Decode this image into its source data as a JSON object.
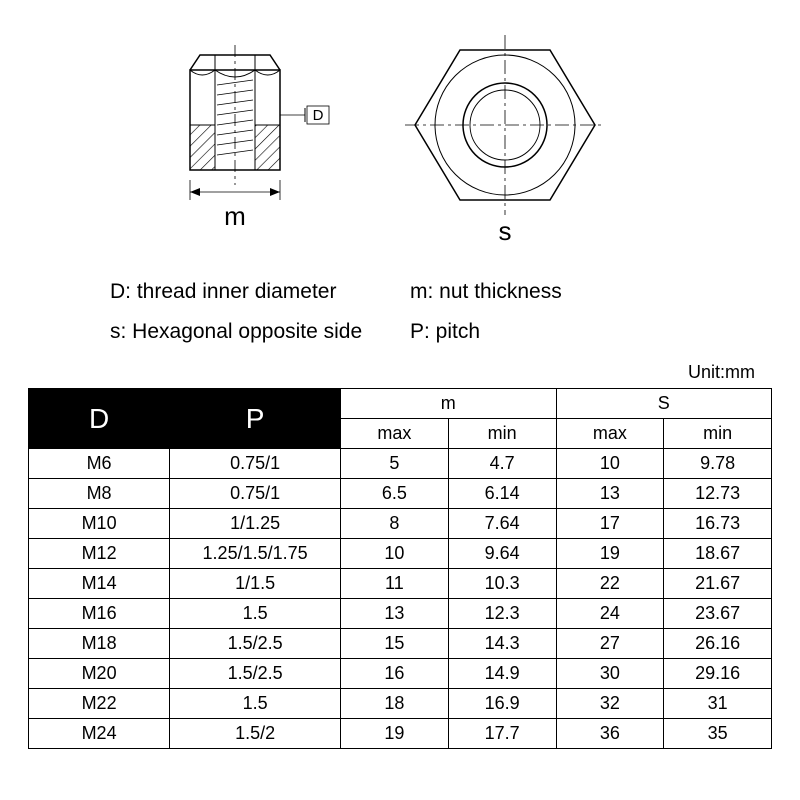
{
  "diagrams": {
    "side_label": "m",
    "top_label": "s",
    "d_callout": "D",
    "stroke": "#000000",
    "hatch": "#000000"
  },
  "legend": {
    "d": "D: thread inner diameter",
    "m": "m: nut thickness",
    "s": "s: Hexagonal opposite side",
    "p": "P: pitch"
  },
  "unit": "Unit:mm",
  "table": {
    "type": "table",
    "header_bg": "#000000",
    "header_fg": "#ffffff",
    "border_color": "#000000",
    "columns_top": [
      "D",
      "P",
      "m",
      "S"
    ],
    "columns_sub": [
      "max",
      "min",
      "max",
      "min"
    ],
    "rows": [
      [
        "M6",
        "0.75/1",
        "5",
        "4.7",
        "10",
        "9.78"
      ],
      [
        "M8",
        "0.75/1",
        "6.5",
        "6.14",
        "13",
        "12.73"
      ],
      [
        "M10",
        "1/1.25",
        "8",
        "7.64",
        "17",
        "16.73"
      ],
      [
        "M12",
        "1.25/1.5/1.75",
        "10",
        "9.64",
        "19",
        "18.67"
      ],
      [
        "M14",
        "1/1.5",
        "11",
        "10.3",
        "22",
        "21.67"
      ],
      [
        "M16",
        "1.5",
        "13",
        "12.3",
        "24",
        "23.67"
      ],
      [
        "M18",
        "1.5/2.5",
        "15",
        "14.3",
        "27",
        "26.16"
      ],
      [
        "M20",
        "1.5/2.5",
        "16",
        "14.9",
        "30",
        "29.16"
      ],
      [
        "M22",
        "1.5",
        "18",
        "16.9",
        "32",
        "31"
      ],
      [
        "M24",
        "1.5/2",
        "19",
        "17.7",
        "36",
        "35"
      ]
    ]
  }
}
